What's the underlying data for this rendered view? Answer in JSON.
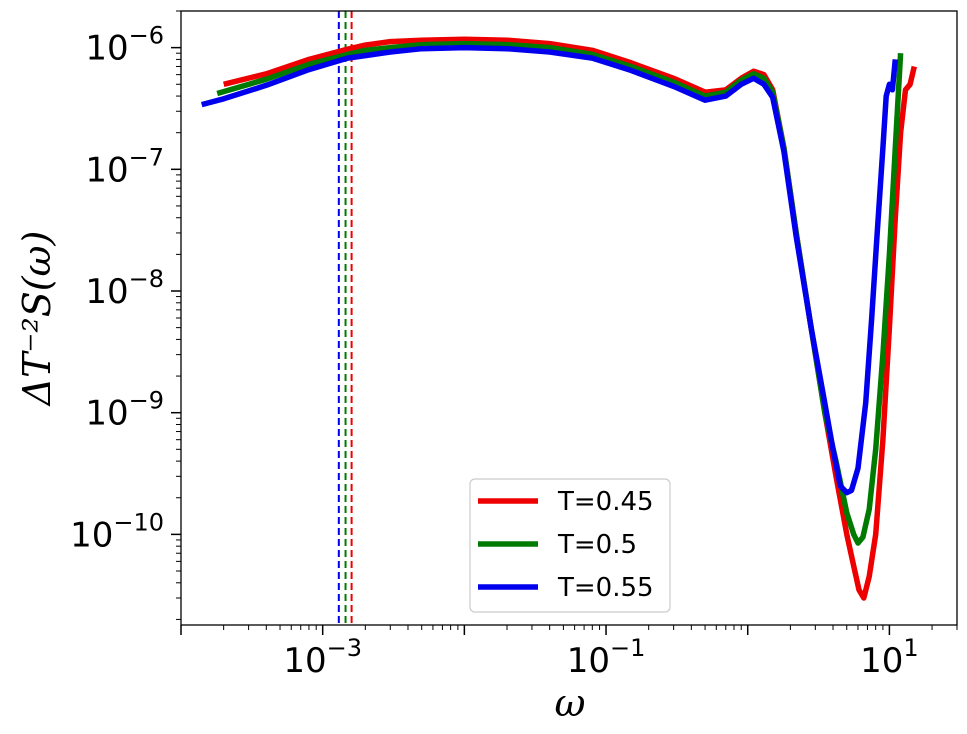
{
  "chart_data": {
    "type": "line",
    "xlabel": "ω",
    "ylabel": "ΔT⁻²S(ω)",
    "xscale": "log",
    "yscale": "log",
    "xlim": [
      0.0001,
      30
    ],
    "ylim": [
      1.8e-11,
      2e-06
    ],
    "xticks": [
      {
        "value": 0.001,
        "base": "10",
        "exp": "−3"
      },
      {
        "value": 0.1,
        "base": "10",
        "exp": "−1"
      },
      {
        "value": 10,
        "base": "10",
        "exp": "1"
      }
    ],
    "yticks": [
      {
        "value": 1e-10,
        "base": "10",
        "exp": "−10"
      },
      {
        "value": 1e-09,
        "base": "10",
        "exp": "−9"
      },
      {
        "value": 1e-08,
        "base": "10",
        "exp": "−8"
      },
      {
        "value": 1e-07,
        "base": "10",
        "exp": "−7"
      },
      {
        "value": 1e-06,
        "base": "10",
        "exp": "−6"
      }
    ],
    "legend_position": "lower-center",
    "series": [
      {
        "name": "T=0.45",
        "color": "#ee0000",
        "x": [
          0.0002,
          0.0004,
          0.0008,
          0.0015,
          0.002,
          0.003,
          0.005,
          0.01,
          0.02,
          0.04,
          0.08,
          0.15,
          0.3,
          0.5,
          0.7,
          0.9,
          1.1,
          1.3,
          1.5,
          1.8,
          2.2,
          2.8,
          3.5,
          4.2,
          5.0,
          5.6,
          6.1,
          6.6,
          7.2,
          8.0,
          9.0,
          10.0,
          11.0,
          12.0,
          13.0,
          14.0,
          15.0
        ],
        "y": [
          5e-07,
          6.1e-07,
          8e-07,
          9.7e-07,
          1.05e-06,
          1.12e-06,
          1.15e-06,
          1.17e-06,
          1.15e-06,
          1.08e-06,
          9.5e-07,
          7.5e-07,
          5.6e-07,
          4.3e-07,
          4.5e-07,
          5.6e-07,
          6.4e-07,
          6e-07,
          4.5e-07,
          1.5e-07,
          3e-08,
          5e-09,
          1e-09,
          3e-10,
          1e-10,
          5.5e-11,
          3.5e-11,
          3e-11,
          4.5e-11,
          1e-10,
          6e-10,
          5e-09,
          4e-08,
          2e-07,
          4.5e-07,
          5e-07,
          7e-07
        ]
      },
      {
        "name": "T=0.5",
        "color": "#007a00",
        "x": [
          0.00018,
          0.0004,
          0.0008,
          0.0015,
          0.002,
          0.003,
          0.005,
          0.01,
          0.02,
          0.04,
          0.08,
          0.15,
          0.3,
          0.5,
          0.7,
          0.9,
          1.1,
          1.3,
          1.5,
          1.8,
          2.2,
          2.8,
          3.5,
          4.2,
          5.0,
          5.6,
          6.0,
          6.5,
          7.2,
          8.0,
          9.0,
          10.0,
          11.0,
          12.0
        ],
        "y": [
          4.2e-07,
          5.5e-07,
          7.3e-07,
          8.8e-07,
          9.5e-07,
          1e-06,
          1.06e-06,
          1.08e-06,
          1.06e-06,
          1e-06,
          8.8e-07,
          7e-07,
          5.2e-07,
          4e-07,
          4.3e-07,
          5.4e-07,
          6.1e-07,
          5.6e-07,
          4.3e-07,
          1.5e-07,
          3e-08,
          5e-09,
          1e-09,
          4e-10,
          1.5e-10,
          1e-10,
          8.5e-11,
          9.5e-11,
          1.6e-10,
          5e-10,
          3e-09,
          2e-08,
          1.5e-07,
          9e-07
        ]
      },
      {
        "name": "T=0.55",
        "color": "#0000ee",
        "x": [
          0.00014,
          0.0002,
          0.0004,
          0.0008,
          0.0015,
          0.002,
          0.003,
          0.005,
          0.01,
          0.02,
          0.04,
          0.08,
          0.15,
          0.3,
          0.5,
          0.7,
          0.9,
          1.1,
          1.3,
          1.5,
          1.8,
          2.2,
          2.8,
          3.5,
          4.0,
          4.5,
          5.0,
          5.4,
          6.0,
          6.8,
          7.5,
          8.2,
          9.0,
          9.5,
          10.0,
          10.5,
          11.0
        ],
        "y": [
          3.4e-07,
          3.8e-07,
          4.9e-07,
          6.6e-07,
          8.2e-07,
          8.6e-07,
          9.2e-07,
          9.8e-07,
          1e-06,
          9.8e-07,
          9.2e-07,
          8.2e-07,
          6.5e-07,
          4.8e-07,
          3.7e-07,
          4e-07,
          5e-07,
          5.6e-07,
          5e-07,
          3.9e-07,
          1.4e-07,
          2.8e-08,
          5e-09,
          1.2e-09,
          5e-10,
          2.5e-10,
          2.2e-10,
          2.3e-10,
          3.5e-10,
          1.2e-09,
          6e-09,
          3e-08,
          1.5e-07,
          4e-07,
          5e-07,
          4.5e-07,
          8e-07
        ]
      }
    ],
    "vlines": [
      {
        "x": 0.0013,
        "color": "#0000ee",
        "style": "dashed"
      },
      {
        "x": 0.00145,
        "color": "#007a00",
        "style": "dashed"
      },
      {
        "x": 0.0016,
        "color": "#ee0000",
        "style": "dashed"
      }
    ]
  }
}
